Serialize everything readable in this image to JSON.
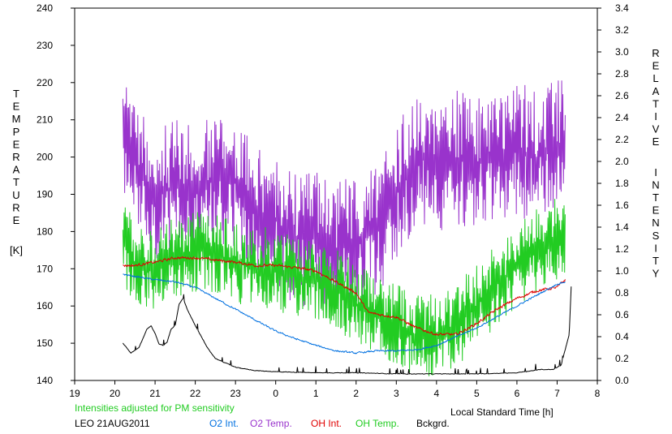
{
  "chart_data": {
    "type": "line",
    "xlabel": "Local Standard Time [h]",
    "ylabel_left_letters": [
      "T",
      "E",
      "M",
      "P",
      "E",
      "R",
      "A",
      "T",
      "U",
      "R",
      "E"
    ],
    "ylabel_left_unit": "[K]",
    "ylabel_right_words": [
      [
        "R",
        "E",
        "L",
        "A",
        "T",
        "I",
        "V",
        "E"
      ],
      [
        "I",
        "N",
        "T",
        "E",
        "N",
        "S",
        "I",
        "T",
        "Y"
      ]
    ],
    "note": "Intensities adjusted for PM sensitivity",
    "site_date": "LEO 21AUG2011",
    "x_tick_labels": [
      "19",
      "20",
      "21",
      "22",
      "23",
      "0",
      "1",
      "2",
      "3",
      "4",
      "5",
      "6",
      "7",
      "8"
    ],
    "xlim": [
      19,
      32
    ],
    "ylim_left": [
      140,
      240
    ],
    "ylim_right": [
      0,
      3.4
    ],
    "y_left_ticks": [
      140,
      150,
      160,
      170,
      180,
      190,
      200,
      210,
      220,
      230,
      240
    ],
    "y_right_ticks": [
      "0.0",
      "0.2",
      "0.4",
      "0.6",
      "0.8",
      "1.0",
      "1.2",
      "1.4",
      "1.6",
      "1.8",
      "2.0",
      "2.2",
      "2.4",
      "2.6",
      "2.8",
      "3.0",
      "3.2",
      "3.4"
    ],
    "colors": {
      "o2_int": "#0070e0",
      "o2_temp": "#9933cc",
      "oh_int": "#e00000",
      "oh_temp": "#22cc22",
      "bckgrd": "#000000",
      "note": "#22cc22"
    },
    "legend": [
      {
        "key": "o2_int",
        "label": "O2 Int."
      },
      {
        "key": "o2_temp",
        "label": "O2 Temp."
      },
      {
        "key": "oh_int",
        "label": "OH Int."
      },
      {
        "key": "oh_temp",
        "label": "OH Temp."
      },
      {
        "key": "bckgrd",
        "label": "Bckgrd."
      }
    ],
    "series": [
      {
        "key": "o2_temp",
        "axis": "left",
        "noise": 13,
        "x": [
          20.2,
          20.6,
          21.0,
          21.5,
          22.0,
          22.5,
          23.0,
          23.5,
          24.0,
          24.5,
          25.0,
          25.5,
          26.0,
          26.5,
          27.0,
          27.5,
          28.0,
          28.5,
          29.0,
          29.5,
          30.0,
          30.5,
          31.0,
          31.2
        ],
        "y": [
          210,
          195,
          190,
          192,
          190,
          195,
          193,
          185,
          183,
          178,
          178,
          175,
          178,
          180,
          190,
          200,
          198,
          200,
          198,
          200,
          202,
          200,
          203,
          205
        ]
      },
      {
        "key": "oh_temp",
        "axis": "left",
        "noise": 8,
        "x": [
          20.2,
          20.6,
          21.0,
          21.5,
          22.0,
          22.5,
          23.0,
          23.5,
          24.0,
          24.5,
          25.0,
          25.5,
          26.0,
          26.5,
          27.0,
          27.5,
          28.0,
          28.5,
          29.0,
          29.5,
          30.0,
          30.5,
          31.0,
          31.2
        ],
        "y": [
          177,
          170,
          170,
          173,
          175,
          174,
          172,
          170,
          170,
          168,
          167,
          165,
          160,
          157,
          155,
          152,
          152,
          155,
          160,
          166,
          171,
          175,
          178,
          177
        ]
      },
      {
        "key": "oh_int",
        "axis": "right",
        "noise": 0.02,
        "x": [
          20.2,
          20.5,
          21.0,
          21.5,
          22.0,
          22.5,
          23.0,
          23.5,
          24.0,
          24.5,
          25.0,
          25.5,
          26.0,
          26.3,
          26.6,
          27.0,
          27.5,
          28.0,
          28.5,
          29.0,
          29.5,
          30.0,
          30.5,
          31.0,
          31.2
        ],
        "y": [
          1.05,
          1.05,
          1.08,
          1.12,
          1.12,
          1.1,
          1.08,
          1.05,
          1.05,
          1.03,
          1.0,
          0.9,
          0.8,
          0.62,
          0.6,
          0.58,
          0.48,
          0.42,
          0.42,
          0.52,
          0.65,
          0.75,
          0.82,
          0.85,
          0.92
        ]
      },
      {
        "key": "o2_int",
        "axis": "right",
        "noise": 0.012,
        "x": [
          20.2,
          20.5,
          21.0,
          21.5,
          22.0,
          22.5,
          23.0,
          23.5,
          24.0,
          24.5,
          25.0,
          25.5,
          26.0,
          26.5,
          27.0,
          27.5,
          28.0,
          28.5,
          29.0,
          29.5,
          30.0,
          30.5,
          31.0,
          31.2
        ],
        "y": [
          0.97,
          0.95,
          0.92,
          0.9,
          0.85,
          0.75,
          0.65,
          0.55,
          0.45,
          0.38,
          0.32,
          0.27,
          0.25,
          0.27,
          0.27,
          0.28,
          0.32,
          0.4,
          0.48,
          0.58,
          0.68,
          0.78,
          0.88,
          0.9
        ]
      },
      {
        "key": "bckgrd",
        "axis": "right",
        "noise": 0.004,
        "x": [
          20.2,
          20.4,
          20.6,
          20.8,
          20.9,
          21.0,
          21.1,
          21.2,
          21.3,
          21.4,
          21.5,
          21.6,
          21.7,
          21.8,
          22.0,
          22.3,
          22.5,
          23.0,
          23.5,
          24.0,
          25.0,
          26.0,
          27.0,
          28.0,
          29.0,
          30.0,
          30.6,
          30.9,
          31.1,
          31.3,
          31.35
        ],
        "y": [
          0.34,
          0.25,
          0.3,
          0.47,
          0.5,
          0.43,
          0.33,
          0.32,
          0.35,
          0.47,
          0.5,
          0.7,
          0.75,
          0.65,
          0.5,
          0.3,
          0.2,
          0.12,
          0.09,
          0.08,
          0.07,
          0.07,
          0.06,
          0.06,
          0.06,
          0.07,
          0.1,
          0.1,
          0.14,
          0.42,
          0.86
        ]
      }
    ]
  }
}
